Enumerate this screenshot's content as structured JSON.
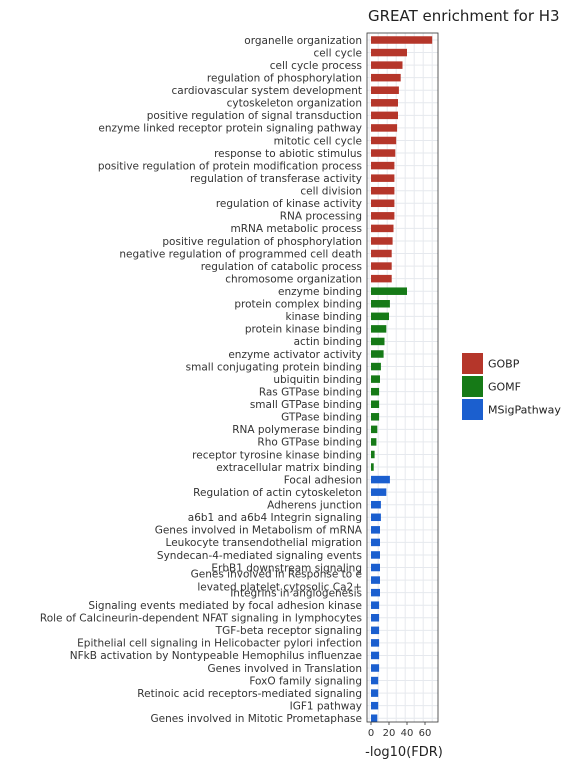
{
  "chart_data": {
    "type": "bar",
    "orientation": "horizontal",
    "title": "GREAT enrichment for H3",
    "xlabel": "-log10(FDR)",
    "ylabel": "",
    "xlim": [
      -2,
      73
    ],
    "xticks": [
      0,
      20,
      40,
      60
    ],
    "grid": true,
    "legend_position": "right",
    "colors": {
      "GOBP": "#b5362a",
      "GOMF": "#167a17",
      "MSigPathway": "#1b5fcf"
    },
    "legend": [
      "GOBP",
      "GOMF",
      "MSigPathway"
    ],
    "categories": [
      "organelle organization",
      "cell cycle",
      "cell cycle process",
      "regulation of phosphorylation",
      "cardiovascular system development",
      "cytoskeleton organization",
      "positive regulation of signal transduction",
      "enzyme linked receptor protein signaling pathway",
      "mitotic cell cycle",
      "response to abiotic stimulus",
      "positive regulation of protein modification process",
      "regulation of transferase activity",
      "cell division",
      "regulation of kinase activity",
      "RNA processing",
      "mRNA metabolic process",
      "positive regulation of phosphorylation",
      "negative regulation of programmed cell death",
      "regulation of catabolic process",
      "chromosome organization",
      "enzyme binding",
      "protein complex binding",
      "kinase binding",
      "protein kinase binding",
      "actin binding",
      "enzyme activator activity",
      "small conjugating protein binding",
      "ubiquitin binding",
      "Ras GTPase binding",
      "small GTPase binding",
      "GTPase binding",
      "RNA polymerase binding",
      "Rho GTPase binding",
      "receptor tyrosine kinase binding",
      "extracellular matrix binding",
      "Focal adhesion",
      "Regulation of actin cytoskeleton",
      "Adherens junction",
      "a6b1 and a6b4 Integrin signaling",
      "Genes involved in Metabolism of mRNA",
      "Leukocyte transendothelial migration",
      "Syndecan-4-mediated signaling events",
      "ErbB1 downstream signaling",
      "Genes involved in Response to e levated platelet cytosolic Ca2+",
      "Integrins in angiogenesis",
      "Signaling events mediated by focal adhesion kinase",
      "Role of Calcineurin-dependent NFAT signaling in lymphocytes",
      "TGF-beta receptor signaling",
      "Epithelial cell signaling in Helicobacter pylori infection",
      "NFkB activation by Nontypeable Hemophilus influenzae",
      "Genes involved in Translation",
      "FoxO family signaling",
      "Retinoic acid receptors-mediated signaling",
      "IGF1 pathway",
      "Genes involved in Mitotic Prometaphase"
    ],
    "display_labels": [
      [
        "organelle organization"
      ],
      [
        "cell cycle"
      ],
      [
        "cell cycle process"
      ],
      [
        "regulation of phosphorylation"
      ],
      [
        "cardiovascular system development"
      ],
      [
        "cytoskeleton organization"
      ],
      [
        "positive regulation of signal transduction"
      ],
      [
        "enzyme linked receptor protein signaling pathway"
      ],
      [
        "mitotic cell cycle"
      ],
      [
        "response to abiotic stimulus"
      ],
      [
        "positive regulation of protein modification process"
      ],
      [
        "regulation of transferase activity"
      ],
      [
        "cell division"
      ],
      [
        "regulation of kinase activity"
      ],
      [
        "RNA processing"
      ],
      [
        "mRNA metabolic process"
      ],
      [
        "positive regulation of phosphorylation"
      ],
      [
        "negative regulation of programmed cell death"
      ],
      [
        "regulation of catabolic process"
      ],
      [
        "chromosome organization"
      ],
      [
        "enzyme binding"
      ],
      [
        "protein complex binding"
      ],
      [
        "kinase binding"
      ],
      [
        "protein kinase binding"
      ],
      [
        "actin binding"
      ],
      [
        "enzyme activator activity"
      ],
      [
        "small conjugating protein binding"
      ],
      [
        "ubiquitin binding"
      ],
      [
        "Ras GTPase binding"
      ],
      [
        "small GTPase binding"
      ],
      [
        "GTPase binding"
      ],
      [
        "RNA polymerase binding"
      ],
      [
        "Rho GTPase binding"
      ],
      [
        "receptor tyrosine kinase binding"
      ],
      [
        "extracellular matrix binding"
      ],
      [
        "Focal adhesion"
      ],
      [
        "Regulation of actin cytoskeleton"
      ],
      [
        "Adherens junction"
      ],
      [
        "a6b1 and a6b4 Integrin signaling"
      ],
      [
        "Genes involved in Metabolism of mRNA"
      ],
      [
        "Leukocyte transendothelial migration"
      ],
      [
        "Syndecan-4-mediated signaling events"
      ],
      [
        "ErbB1 downstream signaling"
      ],
      [
        "Genes involved in Response to e",
        "levated platelet cytosolic Ca2+"
      ],
      [
        "Integrins in angiogenesis"
      ],
      [
        "Signaling events mediated by focal adhesion kinase"
      ],
      [
        "Role of Calcineurin-dependent NFAT signaling in lymphocytes"
      ],
      [
        "TGF-beta receptor signaling"
      ],
      [
        "Epithelial cell signaling in Helicobacter pylori infection"
      ],
      [
        "NFkB activation by Nontypeable Hemophilus influenzae"
      ],
      [
        "Genes involved in Translation"
      ],
      [
        "FoxO family signaling"
      ],
      [
        "Retinoic acid receptors-mediated signaling"
      ],
      [
        "IGF1 pathway"
      ],
      [
        "Genes involved in Mitotic Prometaphase"
      ]
    ],
    "groups": [
      "GOBP",
      "GOBP",
      "GOBP",
      "GOBP",
      "GOBP",
      "GOBP",
      "GOBP",
      "GOBP",
      "GOBP",
      "GOBP",
      "GOBP",
      "GOBP",
      "GOBP",
      "GOBP",
      "GOBP",
      "GOBP",
      "GOBP",
      "GOBP",
      "GOBP",
      "GOBP",
      "GOMF",
      "GOMF",
      "GOMF",
      "GOMF",
      "GOMF",
      "GOMF",
      "GOMF",
      "GOMF",
      "GOMF",
      "GOMF",
      "GOMF",
      "GOMF",
      "GOMF",
      "GOMF",
      "GOMF",
      "MSigPathway",
      "MSigPathway",
      "MSigPathway",
      "MSigPathway",
      "MSigPathway",
      "MSigPathway",
      "MSigPathway",
      "MSigPathway",
      "MSigPathway",
      "MSigPathway",
      "MSigPathway",
      "MSigPathway",
      "MSigPathway",
      "MSigPathway",
      "MSigPathway",
      "MSigPathway",
      "MSigPathway",
      "MSigPathway",
      "MSigPathway",
      "MSigPathway"
    ],
    "values": [
      68,
      40,
      35,
      33,
      31,
      30,
      30,
      29,
      28,
      27,
      26,
      26,
      26,
      26,
      26,
      25,
      24,
      23,
      23,
      23,
      40,
      21,
      20,
      17,
      15,
      14,
      11,
      10,
      9,
      9,
      9,
      7,
      6,
      4,
      3,
      21,
      17,
      11,
      11,
      10,
      10,
      10,
      10,
      10,
      10,
      9,
      9,
      9,
      9,
      9,
      9,
      8,
      8,
      8,
      7
    ]
  }
}
